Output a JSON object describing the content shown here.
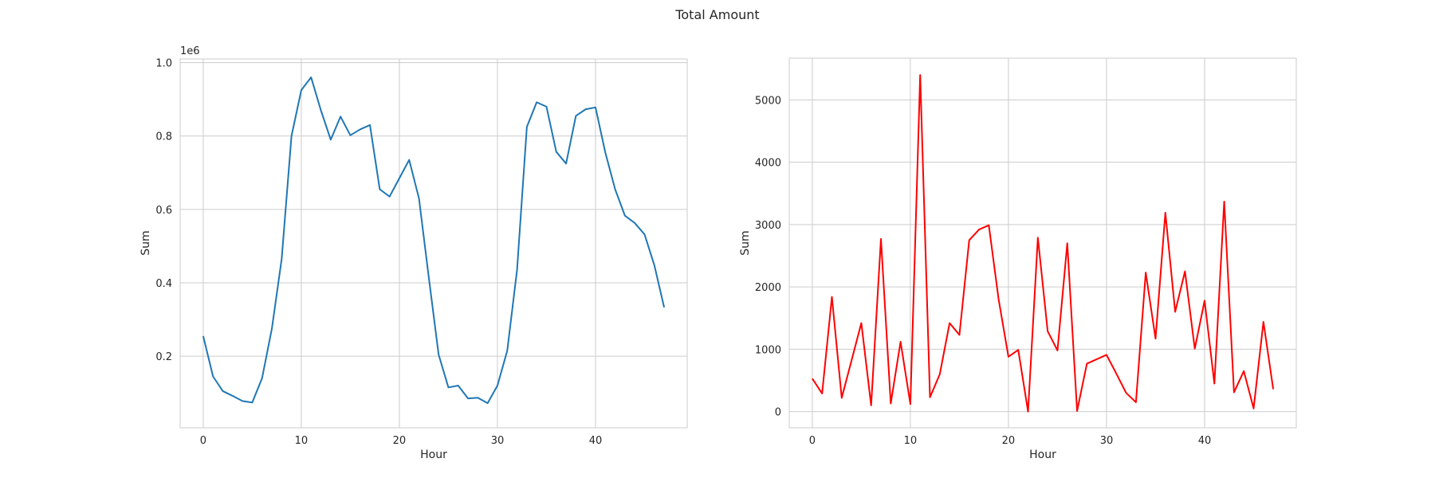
{
  "figure": {
    "title": "Total Amount"
  },
  "chart_data": [
    {
      "type": "line",
      "xlabel": "Hour",
      "ylabel": "Sum",
      "y_offset_label": "1e6",
      "xlim": [
        -2.35,
        49.35
      ],
      "ylim": [
        0.005,
        1.01
      ],
      "x_ticks": [
        0,
        10,
        20,
        30,
        40
      ],
      "x_tick_labels": [
        "0",
        "10",
        "20",
        "30",
        "40"
      ],
      "y_ticks": [
        0.2,
        0.4,
        0.6,
        0.8,
        1.0
      ],
      "y_tick_labels": [
        "0.2",
        "0.4",
        "0.6",
        "0.8",
        "1.0"
      ],
      "grid": true,
      "legend": "none",
      "color": "#1f77b4",
      "series": [
        {
          "x": [
            0,
            1,
            2,
            3,
            4,
            5,
            6,
            7,
            8,
            9,
            10,
            11,
            12,
            13,
            14,
            15,
            16,
            17,
            18,
            19,
            20,
            21,
            22,
            23,
            24,
            25,
            26,
            27,
            28,
            29,
            30,
            31,
            32,
            33,
            34,
            35,
            36,
            37,
            38,
            39,
            40,
            41,
            42,
            43,
            44,
            45,
            46,
            47
          ],
          "values": [
            0.255,
            0.145,
            0.105,
            0.092,
            0.078,
            0.074,
            0.14,
            0.275,
            0.465,
            0.8,
            0.925,
            0.96,
            0.87,
            0.79,
            0.853,
            0.802,
            0.818,
            0.83,
            0.655,
            0.635,
            0.685,
            0.735,
            0.63,
            0.415,
            0.205,
            0.115,
            0.12,
            0.085,
            0.087,
            0.072,
            0.12,
            0.215,
            0.435,
            0.825,
            0.892,
            0.88,
            0.757,
            0.725,
            0.855,
            0.873,
            0.878,
            0.755,
            0.655,
            0.583,
            0.563,
            0.532,
            0.448,
            0.333
          ]
        }
      ]
    },
    {
      "type": "line",
      "xlabel": "Hour",
      "ylabel": "Sum",
      "xlim": [
        -2.35,
        49.35
      ],
      "ylim": [
        -260,
        5670
      ],
      "x_ticks": [
        0,
        10,
        20,
        30,
        40
      ],
      "x_tick_labels": [
        "0",
        "10",
        "20",
        "30",
        "40"
      ],
      "y_ticks": [
        0,
        1000,
        2000,
        3000,
        4000,
        5000
      ],
      "y_tick_labels": [
        "0",
        "1000",
        "2000",
        "3000",
        "4000",
        "5000"
      ],
      "grid": true,
      "legend": "none",
      "color": "#ff0000",
      "series": [
        {
          "x": [
            0,
            1,
            2,
            3,
            4,
            5,
            6,
            7,
            8,
            9,
            10,
            11,
            12,
            13,
            14,
            15,
            16,
            17,
            18,
            19,
            20,
            21,
            22,
            23,
            24,
            25,
            26,
            27,
            28,
            29,
            30,
            31,
            32,
            33,
            34,
            35,
            36,
            37,
            38,
            39,
            40,
            41,
            42,
            43,
            44,
            45,
            46,
            47
          ],
          "values": [
            530,
            290,
            1840,
            220,
            820,
            1420,
            100,
            2770,
            130,
            1120,
            120,
            5400,
            230,
            600,
            1420,
            1230,
            2750,
            2920,
            2990,
            1800,
            880,
            990,
            0,
            2790,
            1290,
            980,
            2700,
            10,
            770,
            840,
            910,
            610,
            300,
            150,
            2230,
            1170,
            3190,
            1600,
            2250,
            1010,
            1780,
            450,
            3370,
            310,
            650,
            50,
            1440,
            360
          ]
        }
      ]
    }
  ]
}
